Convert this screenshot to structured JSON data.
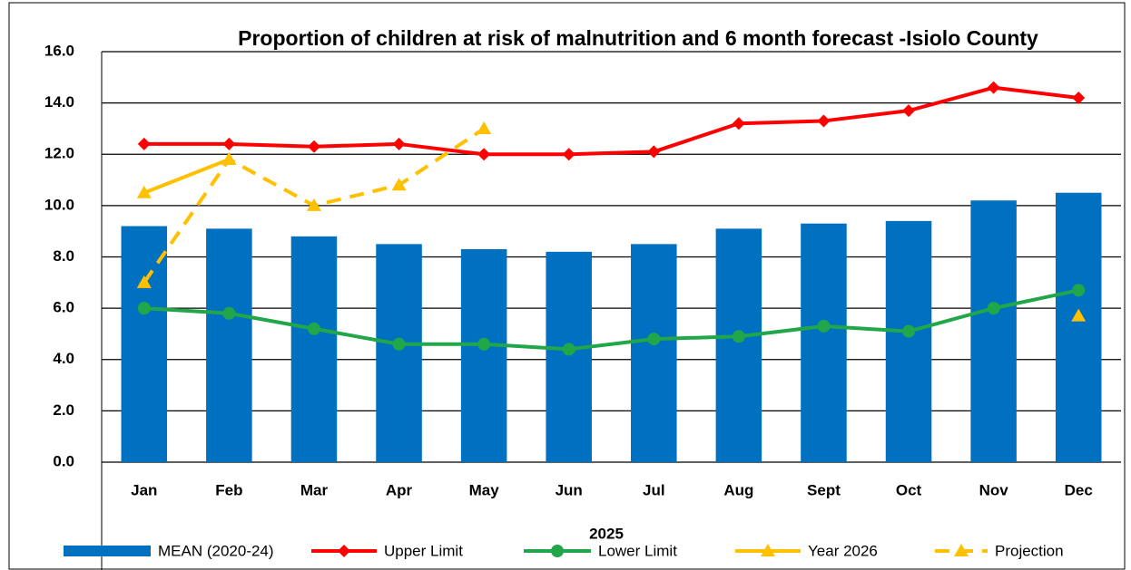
{
  "chart_data": {
    "type": "bar",
    "title": "Proportion of children at risk of malnutrition and 6 month forecast -Isiolo County",
    "xlabel": "2025",
    "categories": [
      "Jan",
      "Feb",
      "Mar",
      "Apr",
      "May",
      "Jun",
      "Jul",
      "Aug",
      "Sept",
      "Oct",
      "Nov",
      "Dec"
    ],
    "series": [
      {
        "name": "MEAN (2020-24)",
        "type": "bar",
        "color": "#0070c0",
        "values": [
          9.2,
          9.1,
          8.8,
          8.5,
          8.3,
          8.2,
          8.5,
          9.1,
          9.3,
          9.4,
          10.2,
          10.5
        ]
      },
      {
        "name": "Upper Limit",
        "type": "line",
        "marker": "diamond",
        "color": "#ff0000",
        "values": [
          12.4,
          12.4,
          12.3,
          12.4,
          12.0,
          12.0,
          12.1,
          13.2,
          13.3,
          13.7,
          14.6,
          14.2
        ]
      },
      {
        "name": "Lower Limit",
        "type": "line",
        "marker": "circle",
        "color": "#21a74a",
        "values": [
          6.0,
          5.8,
          5.2,
          4.6,
          4.6,
          4.4,
          4.8,
          4.9,
          5.3,
          5.1,
          6.0,
          6.7
        ]
      },
      {
        "name": "Year 2026",
        "type": "line",
        "marker": "triangle",
        "color": "#ffc000",
        "values": [
          10.5,
          11.8,
          null,
          null,
          null,
          null,
          null,
          null,
          null,
          null,
          null,
          null
        ]
      },
      {
        "name": "Projection",
        "type": "line",
        "marker": "triangle",
        "dashed": true,
        "color": "#ffc000",
        "values": [
          7.0,
          11.8,
          10.0,
          10.8,
          13.0,
          null,
          null,
          null,
          null,
          null,
          null,
          5.7
        ]
      }
    ],
    "ylim": [
      0,
      16
    ],
    "yticks": [
      {
        "value": 0,
        "label": "0.0"
      },
      {
        "value": 2,
        "label": "2.0"
      },
      {
        "value": 4,
        "label": "4.0"
      },
      {
        "value": 6,
        "label": "6.0"
      },
      {
        "value": 8,
        "label": "8.0"
      },
      {
        "value": 10,
        "label": "10.0"
      },
      {
        "value": 12,
        "label": "12.0"
      },
      {
        "value": 14,
        "label": "14.0"
      },
      {
        "value": 16,
        "label": "16.0"
      }
    ],
    "grid": true,
    "legend": "bottom"
  }
}
